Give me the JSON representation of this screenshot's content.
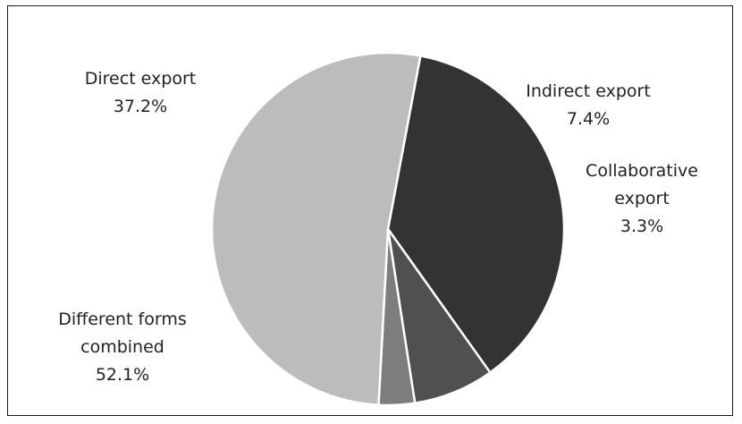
{
  "chart_data": {
    "type": "pie",
    "title": "",
    "slices": [
      {
        "label_lines": [
          "Direct export"
        ],
        "value_label": "37.2%",
        "value": 37.2,
        "color": "#333333"
      },
      {
        "label_lines": [
          "Indirect export"
        ],
        "value_label": "7.4%",
        "value": 7.4,
        "color": "#505050"
      },
      {
        "label_lines": [
          "Collaborative",
          "export"
        ],
        "value_label": "3.3%",
        "value": 3.3,
        "color": "#7d7d7d"
      },
      {
        "label_lines": [
          "Different forms",
          "combined"
        ],
        "value_label": "52.1%",
        "value": 52.1,
        "color": "#bcbcbc"
      }
    ],
    "legend": "none",
    "labels_outside": true
  }
}
